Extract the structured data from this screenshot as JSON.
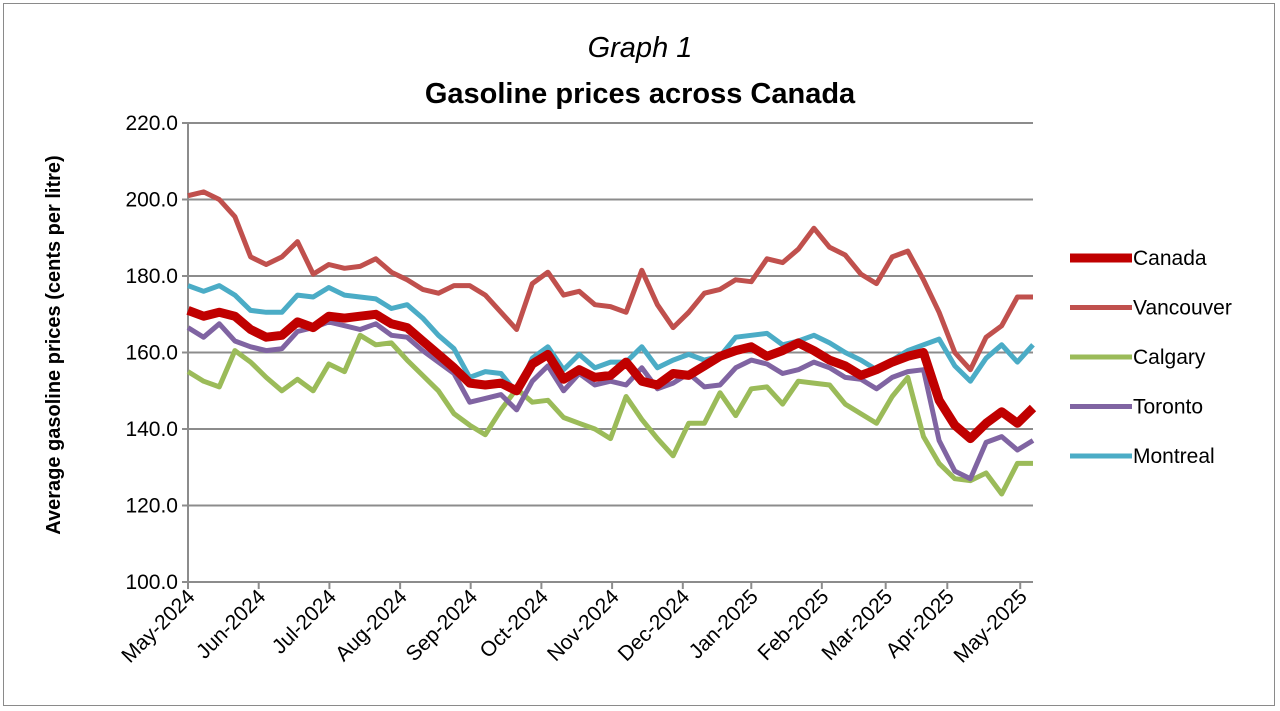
{
  "chart_data": {
    "type": "line",
    "title_line1": "Graph 1",
    "title": "Gasoline prices across Canada",
    "ylabel": "Average gasoline prices (cents per litre)",
    "xlabel": "",
    "ylim": [
      100,
      220
    ],
    "yticks": [
      "100.0",
      "120.0",
      "140.0",
      "160.0",
      "180.0",
      "200.0",
      "220.0"
    ],
    "xticks": [
      "May-2024",
      "Jun-2024",
      "Jul-2024",
      "Aug-2024",
      "Sep-2024",
      "Oct-2024",
      "Nov-2024",
      "Dec-2024",
      "Jan-2025",
      "Feb-2025",
      "Mar-2025",
      "Apr-2025",
      "May-2025"
    ],
    "frequency": "weekly",
    "grid": "horizontal",
    "legend_position": "right",
    "series": [
      {
        "name": "Canada",
        "color": "#c00000",
        "values": [
          171,
          169.5,
          170.5,
          169.5,
          166,
          164,
          164.5,
          168,
          166.5,
          169.5,
          169,
          169.5,
          170,
          167.5,
          166.5,
          163,
          159.5,
          156,
          152,
          151.5,
          152,
          150,
          157,
          159.5,
          153,
          155.5,
          153.5,
          154,
          157.5,
          152.5,
          151.5,
          154.5,
          154,
          156.5,
          159,
          160.5,
          161.5,
          159,
          160.5,
          162.5,
          160.5,
          158,
          156.5,
          154,
          155.5,
          157.5,
          159,
          160,
          147.5,
          141,
          137.5,
          141.5,
          144.5,
          141.5,
          145.5
        ]
      },
      {
        "name": "Vancouver",
        "color": "#c0504d",
        "values": [
          201,
          202,
          200,
          195.5,
          185,
          183,
          185,
          189,
          180.5,
          183,
          182,
          182.5,
          184.5,
          181,
          179,
          176.5,
          175.5,
          177.5,
          177.5,
          175,
          170.5,
          166,
          178,
          181,
          175,
          176,
          172.5,
          172,
          170.5,
          181.5,
          172.5,
          166.5,
          170.5,
          175.5,
          176.5,
          179,
          178.5,
          184.5,
          183.5,
          187,
          192.5,
          187.5,
          185.5,
          180.5,
          178,
          185,
          186.5,
          179,
          170.5,
          160,
          155.5,
          164,
          167,
          174.5,
          174.5
        ]
      },
      {
        "name": "Calgary",
        "color": "#9bbb59",
        "values": [
          155,
          152.5,
          151,
          160.5,
          157.5,
          153.5,
          150,
          153,
          150,
          157,
          155,
          164.5,
          162,
          162.5,
          158,
          154,
          150,
          144,
          141,
          138.5,
          145,
          150.5,
          147,
          147.5,
          143,
          141.5,
          140,
          137.5,
          148.5,
          142.5,
          137.5,
          133,
          141.5,
          141.5,
          149.5,
          143.5,
          150.5,
          151,
          146.5,
          152.5,
          152,
          151.5,
          146.5,
          144,
          141.5,
          148.5,
          153.5,
          138,
          131,
          127,
          126.5,
          128.5,
          123,
          131,
          131
        ]
      },
      {
        "name": "Toronto",
        "color": "#8064a2",
        "values": [
          166.5,
          164,
          167.5,
          163,
          161.5,
          160.5,
          161,
          165.5,
          166.5,
          168,
          167,
          166,
          167.5,
          164.5,
          164,
          160.5,
          157.5,
          154.5,
          147,
          148,
          149,
          145,
          152.5,
          156.5,
          150,
          154.5,
          151.5,
          152.5,
          151.5,
          156,
          150.5,
          152,
          154.5,
          151,
          151.5,
          156,
          158,
          157,
          154.5,
          155.5,
          157.5,
          156,
          153.5,
          153,
          150.5,
          153.5,
          155,
          155.5,
          137,
          129,
          127,
          136.5,
          138,
          134.5,
          137
        ]
      },
      {
        "name": "Montreal",
        "color": "#4bacc6",
        "values": [
          177.5,
          176,
          177.5,
          175,
          171,
          170.5,
          170.5,
          175,
          174.5,
          177,
          175,
          174.5,
          174,
          171.5,
          172.5,
          169,
          164.5,
          161,
          153.5,
          155,
          154.5,
          149.5,
          158.5,
          161.5,
          155.5,
          159.5,
          156,
          157.5,
          157.5,
          161.5,
          156,
          158,
          159.5,
          158,
          159,
          164,
          164.5,
          165,
          162,
          163,
          164.5,
          162.5,
          160,
          158,
          155.5,
          158,
          160.5,
          162,
          163.5,
          156.5,
          152.5,
          158.5,
          162,
          157.5,
          162
        ]
      }
    ]
  }
}
